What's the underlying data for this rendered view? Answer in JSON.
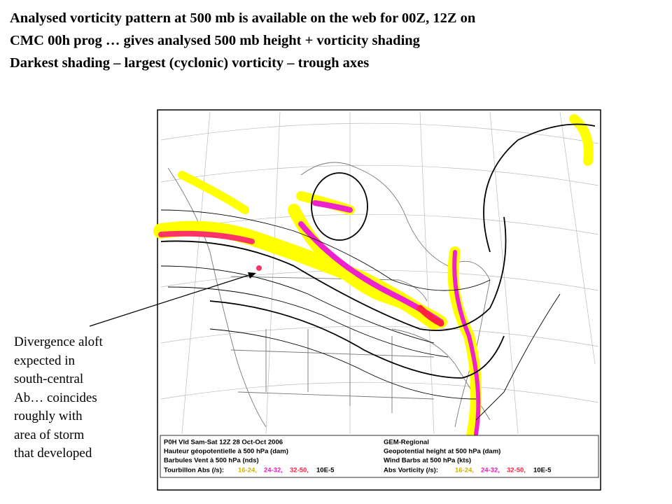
{
  "title_lines": [
    "Analysed vorticity pattern at 500 mb is available on the web for 00Z, 12Z on",
    "CMC 00h prog … gives analysed 500 mb height + vorticity shading",
    "Darkest shading – largest (cyclonic) vorticity – trough axes"
  ],
  "annotation_lines": [
    "Divergence aloft",
    "expected in",
    "south-central",
    "Ab… coincides",
    "roughly with",
    "area of storm",
    "that developed"
  ],
  "map": {
    "legend": {
      "left": {
        "lines": [
          "P0H Vld Sam-Sat 12Z 28 Oct-Oct 2006",
          "Hauteur géopotentielle à 500 hPa (dam)",
          "Barbules Vent à 500 hPa (nds)"
        ],
        "vorticity_label": "Tourbillon Abs (/s):",
        "ranges": [
          "16-24,",
          "24-32,",
          "32-50,"
        ],
        "unit": "10E-5"
      },
      "right": {
        "lines": [
          "GEM-Regional",
          "Geopotential height at 500 hPa (dam)",
          "Wind Barbs at 500 hPa (kts)"
        ],
        "vorticity_label": "Abs Vorticity (/s):",
        "ranges": [
          "16-24,",
          "24-32,",
          "32-50,"
        ],
        "unit": "10E-5"
      }
    }
  }
}
